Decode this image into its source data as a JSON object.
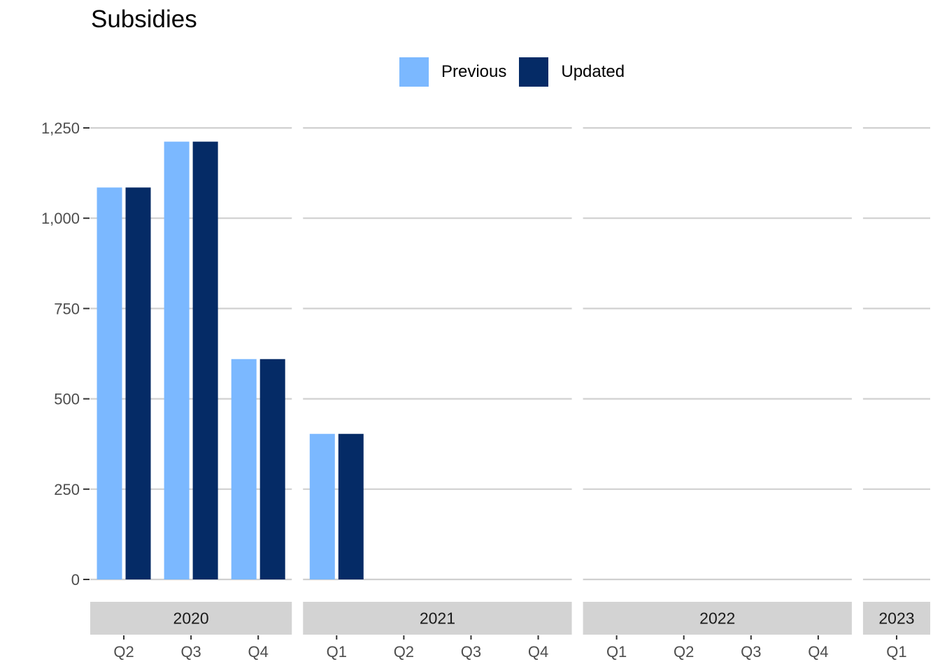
{
  "colors": {
    "previous": "#7bb8ff",
    "updated": "#052b66",
    "grid": "#d0d0d0",
    "strip": "#d3d3d3",
    "axis_text": "#4d4d4d"
  },
  "chart_data": {
    "type": "bar",
    "title": "Subsidies",
    "xlabel": "",
    "ylabel": "",
    "ylim": [
      0,
      1250
    ],
    "yticks": [
      0,
      250,
      500,
      750,
      1000,
      1250
    ],
    "ytick_labels": [
      "0",
      "250",
      "500",
      "750",
      "1,000",
      "1,250"
    ],
    "grid": "horizontal",
    "legend": "top",
    "series": [
      {
        "name": "Previous"
      },
      {
        "name": "Updated"
      }
    ],
    "panels": [
      {
        "label": "2020",
        "categories": [
          "Q2",
          "Q3",
          "Q4"
        ],
        "previous": [
          1085,
          1212,
          610
        ],
        "updated": [
          1085,
          1212,
          610
        ]
      },
      {
        "label": "2021",
        "categories": [
          "Q1",
          "Q2",
          "Q3",
          "Q4"
        ],
        "previous": [
          403,
          null,
          null,
          null
        ],
        "updated": [
          403,
          null,
          null,
          null
        ]
      },
      {
        "label": "2022",
        "categories": [
          "Q1",
          "Q2",
          "Q3",
          "Q4"
        ],
        "previous": [
          null,
          null,
          null,
          null
        ],
        "updated": [
          null,
          null,
          null,
          null
        ]
      },
      {
        "label": "2023",
        "categories": [
          "Q1"
        ],
        "previous": [
          null
        ],
        "updated": [
          null
        ]
      }
    ]
  }
}
